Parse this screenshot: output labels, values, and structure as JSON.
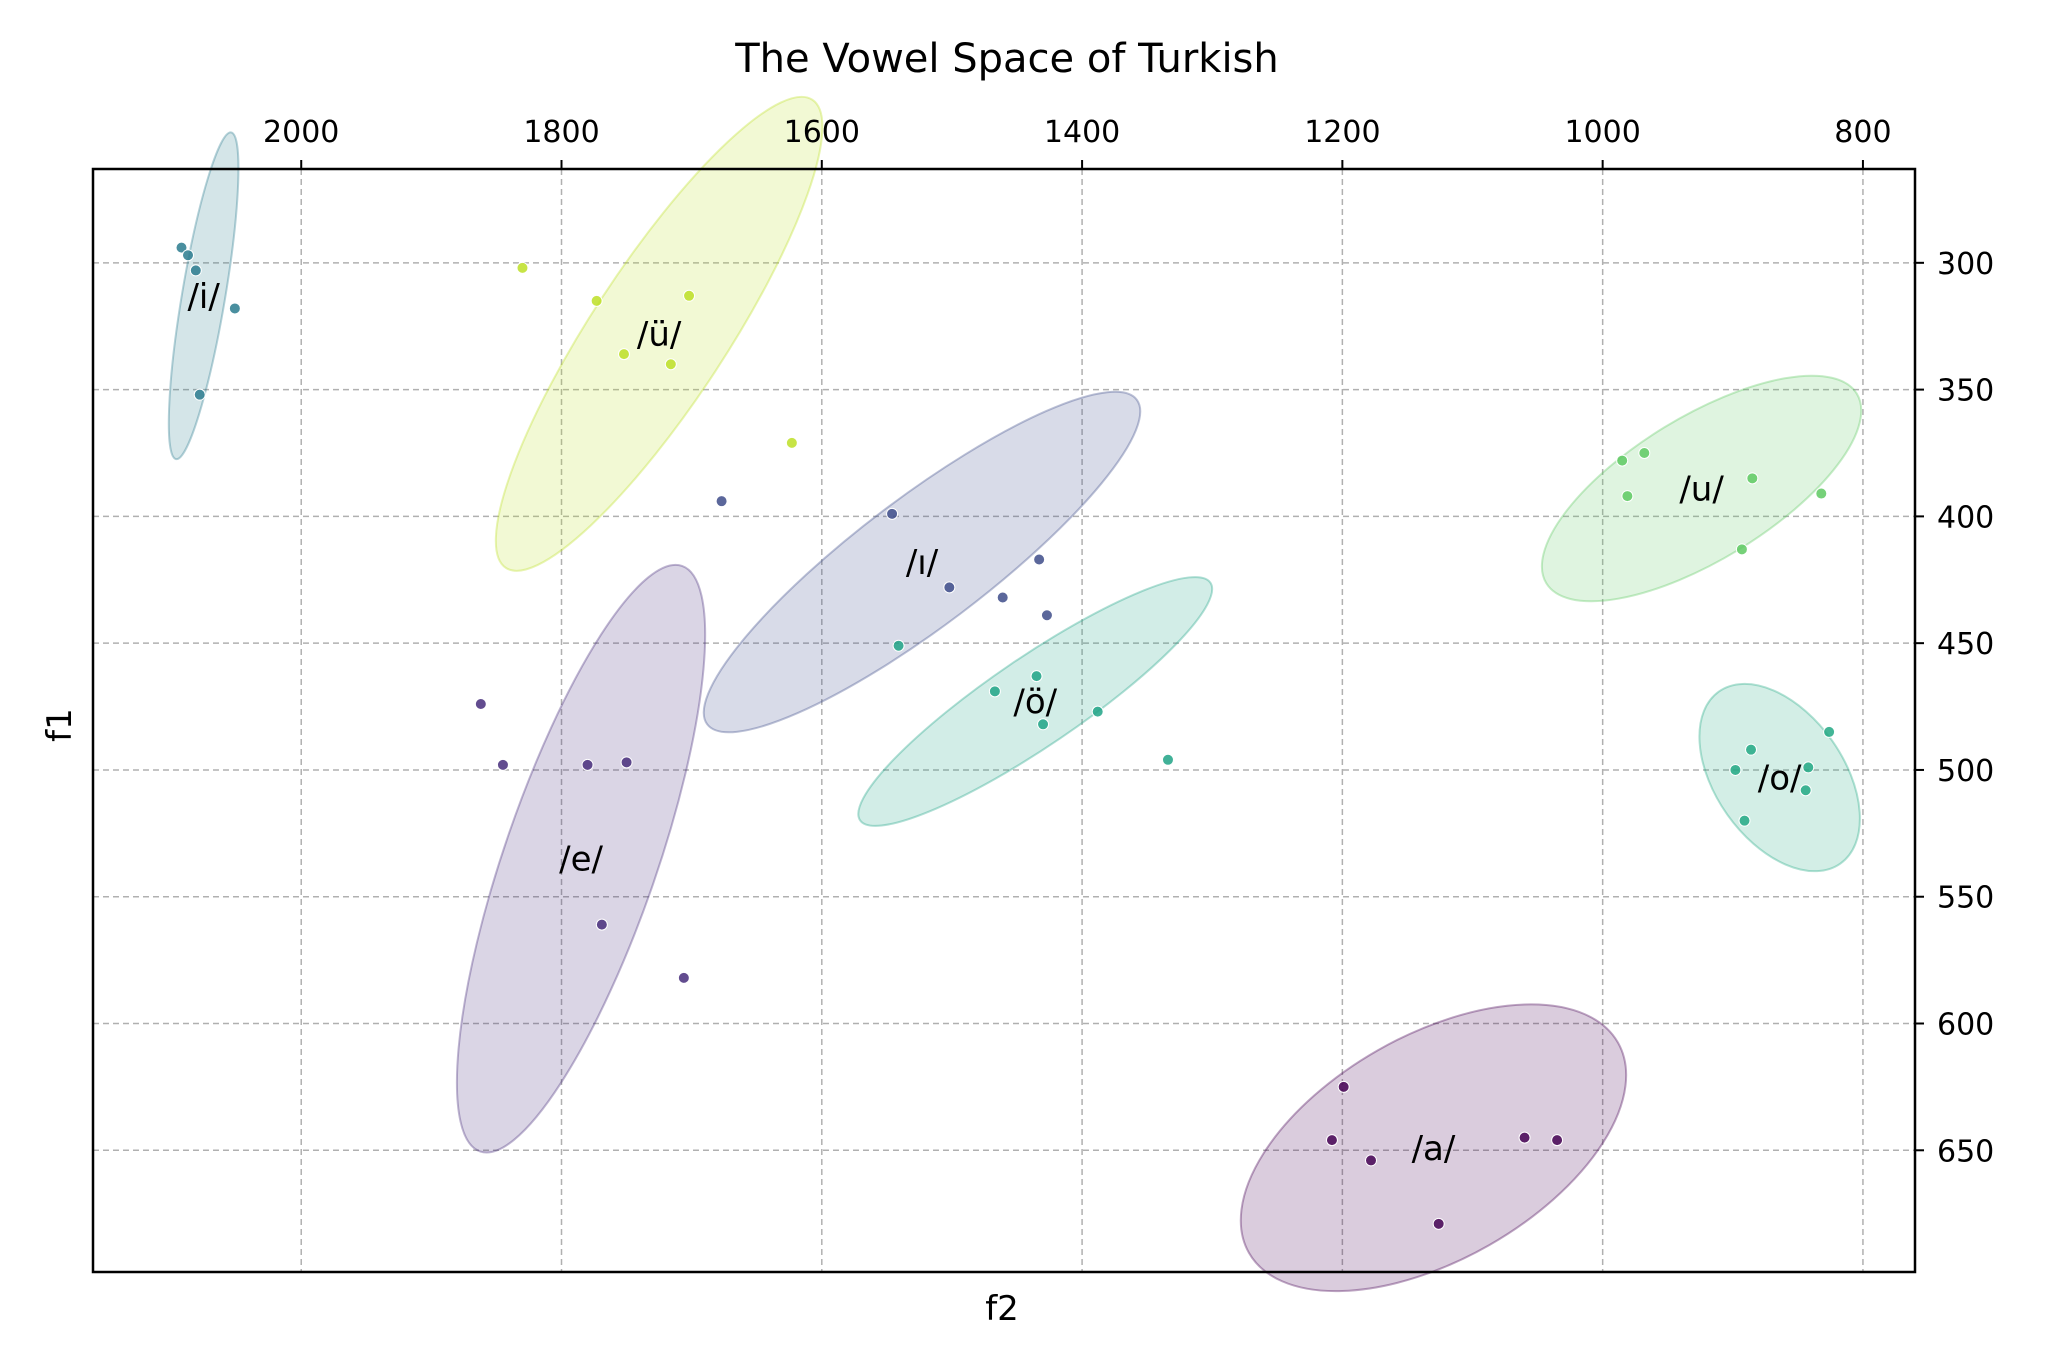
{
  "chart_data": {
    "type": "scatter",
    "title": "The Vowel Space of Turkish",
    "xlabel": "f2",
    "ylabel": "f1",
    "xlim": [
      2160,
      760
    ],
    "ylim": [
      263,
      698
    ],
    "x_inverted": true,
    "y_inverted": true,
    "x_axis_position": "top",
    "y_axis_position": "right",
    "xticks": [
      2000,
      1800,
      1600,
      1400,
      1200,
      1000,
      800
    ],
    "yticks": [
      300,
      350,
      400,
      450,
      500,
      550,
      600,
      650
    ],
    "grid": true,
    "series": [
      {
        "label": "/i/",
        "color": "#2a7b8e",
        "points": [
          [
            2092,
            294
          ],
          [
            2087,
            297
          ],
          [
            2081,
            303
          ],
          [
            2078,
            352
          ],
          [
            2051,
            318
          ]
        ],
        "ellipse": {
          "cx": 2075,
          "cy": 313,
          "rx": 67.8,
          "ry": 14.7,
          "angle": 71.8
        }
      },
      {
        "label": "/ü/",
        "color": "#bddf26",
        "points": [
          [
            1830,
            302
          ],
          [
            1773,
            315
          ],
          [
            1702,
            313
          ],
          [
            1752,
            336
          ],
          [
            1716,
            340
          ],
          [
            1623,
            371
          ]
        ],
        "ellipse": {
          "cx": 1725,
          "cy": 328,
          "rx": 149.6,
          "ry": 31.4,
          "angle": 38.1
        }
      },
      {
        "label": "/ı/",
        "color": "#3e4c8a",
        "points": [
          [
            1677,
            394
          ],
          [
            1546,
            399
          ],
          [
            1502,
            428
          ],
          [
            1461,
            432
          ],
          [
            1433,
            417
          ],
          [
            1427,
            439
          ]
        ],
        "ellipse": {
          "cx": 1523,
          "cy": 418,
          "rx": 177.0,
          "ry": 26.7,
          "angle": 21.2
        }
      },
      {
        "label": "/ö/",
        "color": "#20a386",
        "points": [
          [
            1541,
            451
          ],
          [
            1467,
            469
          ],
          [
            1435,
            463
          ],
          [
            1430,
            482
          ],
          [
            1388,
            477
          ],
          [
            1334,
            496
          ]
        ],
        "ellipse": {
          "cx": 1436,
          "cy": 473,
          "rx": 142.5,
          "ry": 18.3,
          "angle": 19.2
        }
      },
      {
        "label": "/e/",
        "color": "#472d7b",
        "points": [
          [
            1862,
            474
          ],
          [
            1845,
            498
          ],
          [
            1780,
            498
          ],
          [
            1750,
            497
          ],
          [
            1769,
            561
          ],
          [
            1706,
            582
          ]
        ],
        "ellipse": {
          "cx": 1785,
          "cy": 535,
          "rx": 139.1,
          "ry": 42.9,
          "angle": 56.1
        }
      },
      {
        "label": "/u/",
        "color": "#5ec962",
        "points": [
          [
            985,
            378
          ],
          [
            968,
            375
          ],
          [
            981,
            392
          ],
          [
            885,
            385
          ],
          [
            832,
            391
          ],
          [
            893,
            413
          ]
        ],
        "ellipse": {
          "cx": 924,
          "cy": 389,
          "rx": 125.0,
          "ry": 29.2,
          "angle": 17.4
        }
      },
      {
        "label": "/o/",
        "color": "#22a884",
        "points": [
          [
            886,
            492
          ],
          [
            898,
            500
          ],
          [
            826,
            485
          ],
          [
            842,
            499
          ],
          [
            844,
            508
          ],
          [
            891,
            520
          ]
        ],
        "ellipse": {
          "cx": 864,
          "cy": 503,
          "rx": 57.7,
          "ry": 29.3,
          "angle": -36.0
        }
      },
      {
        "label": "/a/",
        "color": "#440154",
        "points": [
          [
            1199,
            625
          ],
          [
            1208,
            646
          ],
          [
            1178,
            654
          ],
          [
            1060,
            645
          ],
          [
            1035,
            646
          ],
          [
            1126,
            679
          ]
        ],
        "ellipse": {
          "cx": 1130,
          "cy": 649,
          "rx": 147.7,
          "ry": 45.6,
          "angle": 16.3
        }
      }
    ]
  }
}
